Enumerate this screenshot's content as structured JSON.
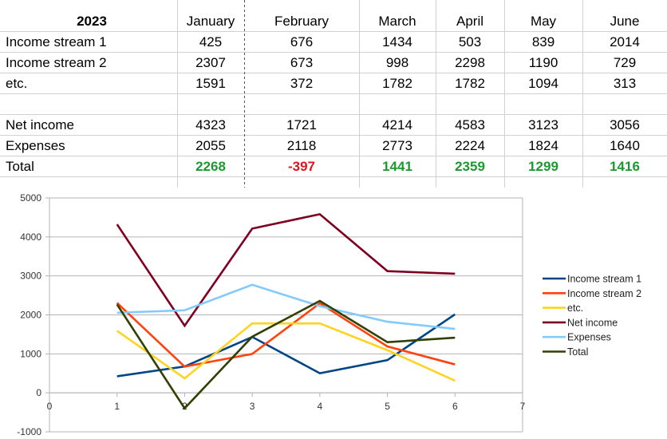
{
  "table": {
    "year": "2023",
    "months": [
      "January",
      "February",
      "March",
      "April",
      "May",
      "June"
    ],
    "rows": [
      {
        "label": "Income stream 1",
        "values": [
          "425",
          "676",
          "1434",
          "503",
          "839",
          "2014"
        ]
      },
      {
        "label": "Income stream 2",
        "values": [
          "2307",
          "673",
          "998",
          "2298",
          "1190",
          "729"
        ]
      },
      {
        "label": "etc.",
        "values": [
          "1591",
          "372",
          "1782",
          "1782",
          "1094",
          "313"
        ]
      },
      {
        "label": "Net income",
        "values": [
          "4323",
          "1721",
          "4214",
          "4583",
          "3123",
          "3056"
        ]
      },
      {
        "label": "Expenses",
        "values": [
          "2055",
          "2118",
          "2773",
          "2224",
          "1824",
          "1640"
        ]
      },
      {
        "label": "Total",
        "values": [
          "2268",
          "-397",
          "1441",
          "2359",
          "1299",
          "1416"
        ]
      }
    ],
    "colors": {
      "positive": "#1a9a2e",
      "negative": "#e2141b"
    }
  },
  "chart_data": {
    "type": "line",
    "x": [
      1,
      2,
      3,
      4,
      5,
      6
    ],
    "xlim": [
      0,
      7
    ],
    "ylim": [
      -1000,
      5000
    ],
    "xticks": [
      "0",
      "1",
      "2",
      "3",
      "4",
      "5",
      "6",
      "7"
    ],
    "yticks": [
      "-1000",
      "0",
      "1000",
      "2000",
      "3000",
      "4000",
      "5000"
    ],
    "grid": true,
    "legend": "right",
    "series": [
      {
        "name": "Income stream 1",
        "color": "#004586",
        "values": [
          425,
          676,
          1434,
          503,
          839,
          2014
        ]
      },
      {
        "name": "Income stream 2",
        "color": "#ff420e",
        "values": [
          2307,
          673,
          998,
          2298,
          1190,
          729
        ]
      },
      {
        "name": "etc.",
        "color": "#ffd320",
        "values": [
          1591,
          372,
          1782,
          1782,
          1094,
          313
        ]
      },
      {
        "name": "Net income",
        "color": "#7e0021",
        "values": [
          4323,
          1721,
          4214,
          4583,
          3123,
          3056
        ]
      },
      {
        "name": "Expenses",
        "color": "#83caff",
        "values": [
          2055,
          2118,
          2773,
          2224,
          1824,
          1640
        ]
      },
      {
        "name": "Total",
        "color": "#314004",
        "values": [
          2268,
          -397,
          1441,
          2359,
          1299,
          1416
        ]
      }
    ]
  }
}
